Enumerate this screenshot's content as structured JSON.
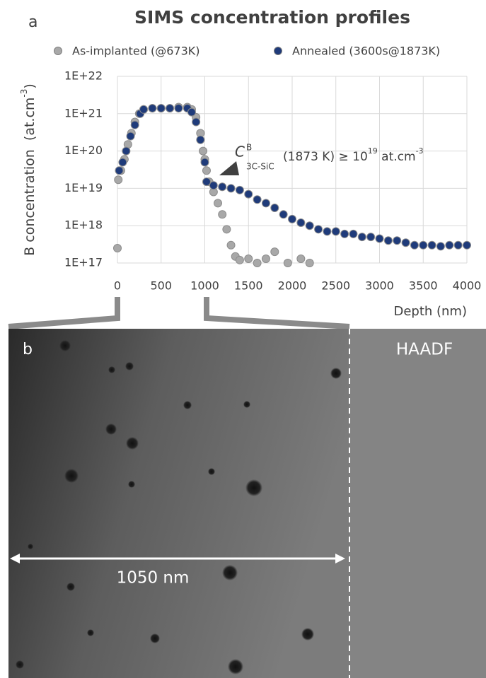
{
  "chart_data": {
    "type": "scatter",
    "panel_label": "a",
    "title": "SIMS concentration profiles",
    "ylabel": [
      "B concentration  (at.cm",
      "-3",
      ")"
    ],
    "xlabel": "Depth (nm)",
    "log_y": true,
    "grid": true,
    "xlim": [
      0,
      4000
    ],
    "xticks": [
      0,
      500,
      1000,
      1500,
      2000,
      2500,
      3000,
      3500,
      4000
    ],
    "ylim": [
      1e+17,
      1e+22
    ],
    "yticks": [
      {
        "value": 1e+17,
        "label": "1E+17"
      },
      {
        "value": 1e+18,
        "label": "1E+18"
      },
      {
        "value": 1e+19,
        "label": "1E+19"
      },
      {
        "value": 1e+20,
        "label": "1E+20"
      },
      {
        "value": 1e+21,
        "label": "1E+21"
      },
      {
        "value": 1e+22,
        "label": "1E+22"
      }
    ],
    "annotation": [
      "C",
      "B",
      "3C-SiC",
      "(1873 K) ≥ 10",
      "19",
      " at.cm",
      "-3"
    ],
    "series": [
      {
        "name": "As-implanted (@673K)",
        "color": "#a8a8a8",
        "x": [
          0,
          10,
          40,
          80,
          120,
          160,
          200,
          250,
          300,
          400,
          500,
          600,
          700,
          800,
          850,
          900,
          950,
          980,
          1000,
          1020,
          1050,
          1100,
          1150,
          1200,
          1250,
          1300,
          1350,
          1400,
          1500,
          1600,
          1700,
          1800,
          1950,
          2100,
          2200
        ],
        "values": [
          2.5e+17,
          1.7e+19,
          3e+19,
          6e+19,
          1.5e+20,
          3e+20,
          6e+20,
          1e+21,
          1.3e+21,
          1.4e+21,
          1.4e+21,
          1.4e+21,
          1.5e+21,
          1.5e+21,
          1.3e+21,
          8e+20,
          3e+20,
          1e+20,
          6e+19,
          3e+19,
          1.5e+19,
          8e+18,
          4e+18,
          2e+18,
          8e+17,
          3e+17,
          1.5e+17,
          1.2e+17,
          1.3e+17,
          1e+17,
          1.3e+17,
          2e+17,
          1e+17,
          1.3e+17,
          1e+17
        ]
      },
      {
        "name": "Annealed (3600s@1873K)",
        "color": "#1f3b7a",
        "x": [
          20,
          60,
          100,
          150,
          200,
          260,
          300,
          400,
          500,
          600,
          700,
          800,
          850,
          900,
          950,
          1000,
          1020,
          1100,
          1200,
          1300,
          1400,
          1500,
          1600,
          1700,
          1800,
          1900,
          2000,
          2100,
          2200,
          2300,
          2400,
          2500,
          2600,
          2700,
          2800,
          2900,
          3000,
          3100,
          3200,
          3300,
          3400,
          3500,
          3600,
          3700,
          3800,
          3900,
          4000
        ],
        "values": [
          3e+19,
          5e+19,
          1e+20,
          2.5e+20,
          5e+20,
          1e+21,
          1.3e+21,
          1.4e+21,
          1.4e+21,
          1.4e+21,
          1.4e+21,
          1.4e+21,
          1.1e+21,
          6e+20,
          2e+20,
          5e+19,
          1.5e+19,
          1.2e+19,
          1.1e+19,
          1e+19,
          9e+18,
          7e+18,
          5e+18,
          4e+18,
          3e+18,
          2e+18,
          1.5e+18,
          1.2e+18,
          1e+18,
          8e+17,
          7e+17,
          7e+17,
          6e+17,
          6e+17,
          5e+17,
          5e+17,
          4.5e+17,
          4e+17,
          4e+17,
          3.5e+17,
          3e+17,
          3e+17,
          3e+17,
          2.8e+17,
          3e+17,
          3e+17,
          3e+17
        ]
      }
    ]
  },
  "image": {
    "panel_label": "b",
    "label": "HAADF",
    "scale_bar": "1050 nm"
  }
}
